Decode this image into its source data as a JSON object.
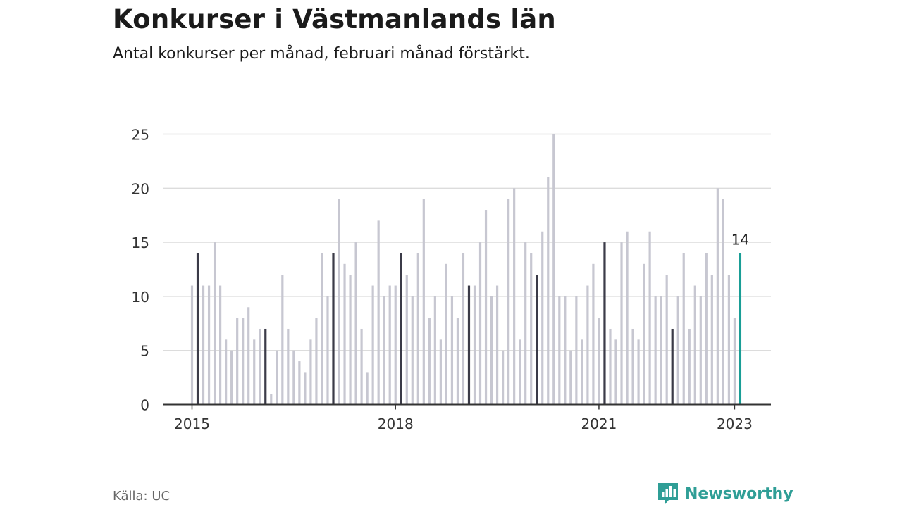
{
  "header": {
    "title": "Konkurser i Västmanlands län",
    "subtitle": "Antal konkurser per månad, februari månad förstärkt."
  },
  "footer": {
    "source": "Källa: UC",
    "brand": "Newsworthy",
    "brand_icon": "newsworthy-logo-icon"
  },
  "colors": {
    "bar": "#c7c7d1",
    "highlight": "#3b3b48",
    "latest": "#1a9e96",
    "grid": "#dcdcdc",
    "axis": "#333333"
  },
  "chart_data": {
    "type": "bar",
    "start": "2015-01",
    "highlight_month": "februari",
    "x_tick_labels": [
      "2015",
      "2018",
      "2021",
      "2023"
    ],
    "y_ticks": [
      0,
      5,
      10,
      15,
      20,
      25
    ],
    "ylim": [
      0,
      25
    ],
    "grid": true,
    "latest_label": "14",
    "months": [
      "2015-01",
      "2015-02",
      "2015-03",
      "2015-04",
      "2015-05",
      "2015-06",
      "2015-07",
      "2015-08",
      "2015-09",
      "2015-10",
      "2015-11",
      "2015-12",
      "2016-01",
      "2016-02",
      "2016-03",
      "2016-04",
      "2016-05",
      "2016-06",
      "2016-07",
      "2016-08",
      "2016-09",
      "2016-10",
      "2016-11",
      "2016-12",
      "2017-01",
      "2017-02",
      "2017-03",
      "2017-04",
      "2017-05",
      "2017-06",
      "2017-07",
      "2017-08",
      "2017-09",
      "2017-10",
      "2017-11",
      "2017-12",
      "2018-01",
      "2018-02",
      "2018-03",
      "2018-04",
      "2018-05",
      "2018-06",
      "2018-07",
      "2018-08",
      "2018-09",
      "2018-10",
      "2018-11",
      "2018-12",
      "2019-01",
      "2019-02",
      "2019-03",
      "2019-04",
      "2019-05",
      "2019-06",
      "2019-07",
      "2019-08",
      "2019-09",
      "2019-10",
      "2019-11",
      "2019-12",
      "2020-01",
      "2020-02",
      "2020-03",
      "2020-04",
      "2020-05",
      "2020-06",
      "2020-07",
      "2020-08",
      "2020-09",
      "2020-10",
      "2020-11",
      "2020-12",
      "2021-01",
      "2021-02",
      "2021-03",
      "2021-04",
      "2021-05",
      "2021-06",
      "2021-07",
      "2021-08",
      "2021-09",
      "2021-10",
      "2021-11",
      "2021-12",
      "2022-01",
      "2022-02",
      "2022-03",
      "2022-04",
      "2022-05",
      "2022-06",
      "2022-07",
      "2022-08",
      "2022-09",
      "2022-10",
      "2022-11",
      "2022-12",
      "2023-01",
      "2023-02"
    ],
    "values": [
      11,
      14,
      11,
      11,
      15,
      11,
      6,
      5,
      8,
      8,
      9,
      6,
      7,
      7,
      1,
      5,
      12,
      7,
      5,
      4,
      3,
      6,
      8,
      14,
      10,
      14,
      19,
      13,
      12,
      15,
      7,
      3,
      11,
      17,
      10,
      11,
      11,
      14,
      12,
      10,
      14,
      19,
      8,
      10,
      6,
      13,
      10,
      8,
      14,
      11,
      11,
      15,
      18,
      10,
      11,
      5,
      19,
      20,
      6,
      15,
      14,
      12,
      16,
      21,
      25,
      10,
      10,
      5,
      10,
      6,
      11,
      13,
      8,
      15,
      7,
      6,
      15,
      16,
      7,
      6,
      13,
      16,
      10,
      10,
      12,
      7,
      10,
      14,
      7,
      11,
      10,
      14,
      12,
      20,
      19,
      12,
      8,
      14
    ]
  }
}
